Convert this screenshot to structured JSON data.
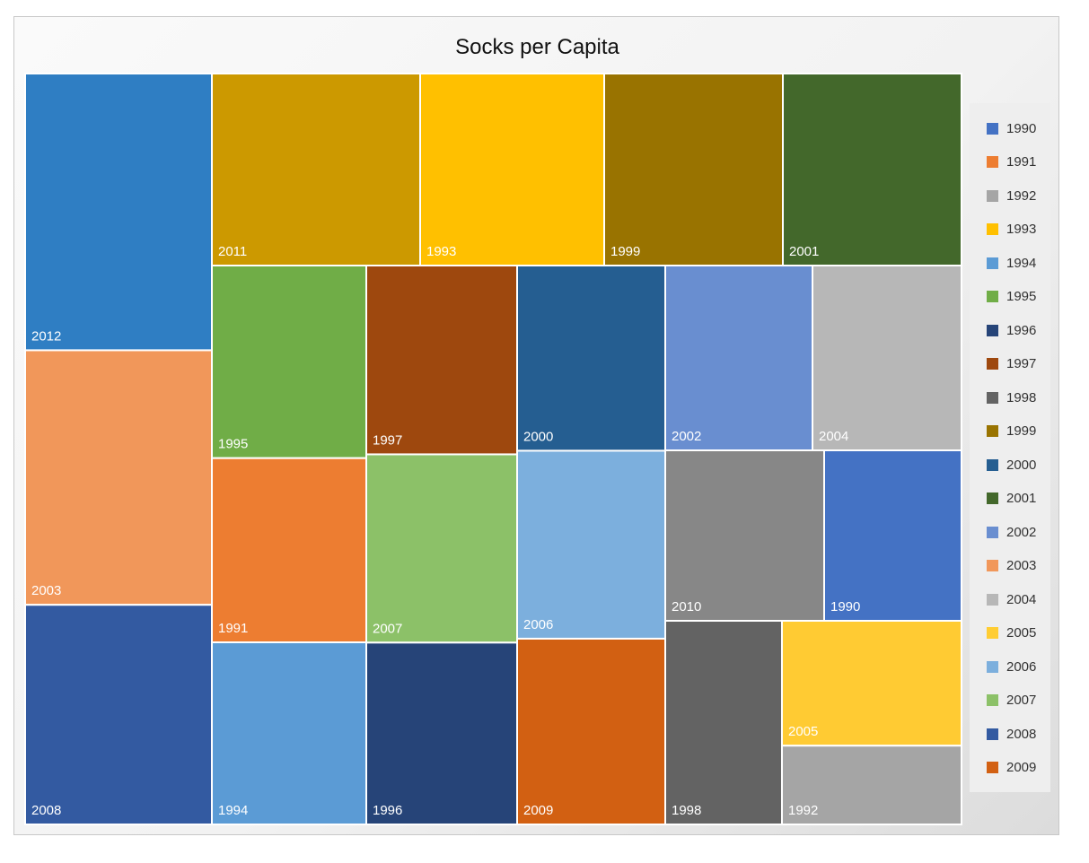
{
  "chart_data": {
    "type": "treemap",
    "title": "Socks per Capita",
    "legend_position": "right",
    "legend": [
      {
        "label": "1990",
        "color": "#4472C4"
      },
      {
        "label": "1991",
        "color": "#ED7D31"
      },
      {
        "label": "1992",
        "color": "#A5A5A5"
      },
      {
        "label": "1993",
        "color": "#FFC000"
      },
      {
        "label": "1994",
        "color": "#5B9BD5"
      },
      {
        "label": "1995",
        "color": "#70AD47"
      },
      {
        "label": "1996",
        "color": "#264478"
      },
      {
        "label": "1997",
        "color": "#9E480E"
      },
      {
        "label": "1998",
        "color": "#636363"
      },
      {
        "label": "1999",
        "color": "#997300"
      },
      {
        "label": "2000",
        "color": "#255E91"
      },
      {
        "label": "2001",
        "color": "#43682B"
      },
      {
        "label": "2002",
        "color": "#698ED0"
      },
      {
        "label": "2003",
        "color": "#F1975A"
      },
      {
        "label": "2004",
        "color": "#B7B7B7"
      },
      {
        "label": "2005",
        "color": "#FFCD33"
      },
      {
        "label": "2006",
        "color": "#7CAFDD"
      },
      {
        "label": "2007",
        "color": "#8CC168"
      },
      {
        "label": "2008",
        "color": "#335AA1"
      },
      {
        "label": "2009",
        "color": "#D26012"
      }
    ],
    "items": [
      {
        "label": "2012",
        "value": 62.5,
        "color": "#2F7EC3"
      },
      {
        "label": "2003",
        "value": 57.5,
        "color": "#F1975A"
      },
      {
        "label": "2008",
        "value": 49.6,
        "color": "#335AA1"
      },
      {
        "label": "2011",
        "value": 49.5,
        "color": "#CC9900"
      },
      {
        "label": "1993",
        "value": 43.9,
        "color": "#FFC000"
      },
      {
        "label": "1999",
        "value": 42.5,
        "color": "#997300"
      },
      {
        "label": "2001",
        "value": 42.4,
        "color": "#43682B"
      },
      {
        "label": "1995",
        "value": 36.7,
        "color": "#70AD47"
      },
      {
        "label": "1991",
        "value": 35.1,
        "color": "#ED7D31"
      },
      {
        "label": "1994",
        "value": 34.7,
        "color": "#5B9BD5"
      },
      {
        "label": "1997",
        "value": 35.1,
        "color": "#9E480E"
      },
      {
        "label": "2007",
        "value": 35.0,
        "color": "#8CC168"
      },
      {
        "label": "1996",
        "value": 33.8,
        "color": "#264478"
      },
      {
        "label": "2000",
        "value": 33.6,
        "color": "#255E91"
      },
      {
        "label": "2002",
        "value": 33.3,
        "color": "#698ED0"
      },
      {
        "label": "2004",
        "value": 33.7,
        "color": "#B7B7B7"
      },
      {
        "label": "2006",
        "value": 34.1,
        "color": "#7CAFDD"
      },
      {
        "label": "2009",
        "value": 33.7,
        "color": "#D26012"
      },
      {
        "label": "2010",
        "value": 33.4,
        "color": "#878787"
      },
      {
        "label": "1990",
        "value": 33.9,
        "color": "#4472C4"
      },
      {
        "label": "1998",
        "value": 30.3,
        "color": "#636363"
      },
      {
        "label": "2005",
        "value": 27.6,
        "color": "#FFCB33"
      },
      {
        "label": "1992",
        "value": 17.4,
        "color": "#A5A5A5"
      }
    ]
  }
}
